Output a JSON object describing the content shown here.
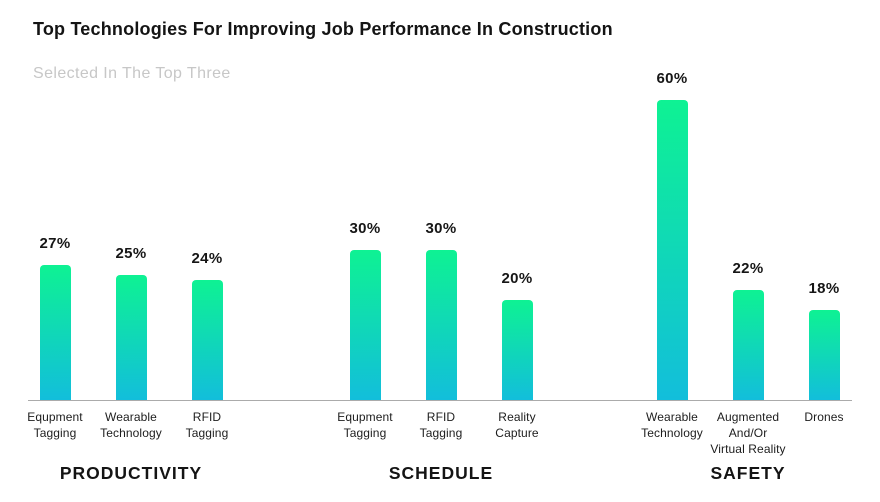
{
  "page": {
    "background": "#ffffff"
  },
  "chart_data": {
    "type": "bar",
    "title": "Top Technologies For Improving Job Performance In Construction",
    "subtitle": "Selected In The Top Three",
    "value_suffix": "%",
    "value_axis": {
      "unit": "percent",
      "min": 0,
      "max": 60,
      "gridlines": false,
      "tick_labels_visible": false
    },
    "legend": "none",
    "groups": [
      {
        "name": "PRODUCTIVITY",
        "bars": [
          {
            "label": "Equpment Tagging",
            "label_lines": [
              "Equpment",
              "Tagging"
            ],
            "value": 27
          },
          {
            "label": "Wearable Technology",
            "label_lines": [
              "Wearable",
              "Technology"
            ],
            "value": 25
          },
          {
            "label": "RFID Tagging",
            "label_lines": [
              "RFID",
              "Tagging"
            ],
            "value": 24
          }
        ]
      },
      {
        "name": "SCHEDULE",
        "bars": [
          {
            "label": "Equpment Tagging",
            "label_lines": [
              "Equpment",
              "Tagging"
            ],
            "value": 30
          },
          {
            "label": "RFID Tagging",
            "label_lines": [
              "RFID",
              "Tagging"
            ],
            "value": 30
          },
          {
            "label": "Reality Capture",
            "label_lines": [
              "Reality",
              "Capture"
            ],
            "value": 20
          }
        ]
      },
      {
        "name": "SAFETY",
        "bars": [
          {
            "label": "Wearable Technology",
            "label_lines": [
              "Wearable",
              "Technology"
            ],
            "value": 60
          },
          {
            "label": "Augmented And/Or Virtual Reality",
            "label_lines": [
              "Augmented",
              "And/Or",
              "Virtual Reality"
            ],
            "value": 22
          },
          {
            "label": "Drones",
            "label_lines": [
              "Drones"
            ],
            "value": 18
          }
        ]
      }
    ],
    "colors": {
      "bar_gradient_top": "#0EF293",
      "bar_gradient_bottom": "#12BEDB",
      "title": "#141414",
      "subtitle": "#c7c7c7",
      "baseline": "#ababab",
      "label_text": "#1d1d1d"
    }
  }
}
